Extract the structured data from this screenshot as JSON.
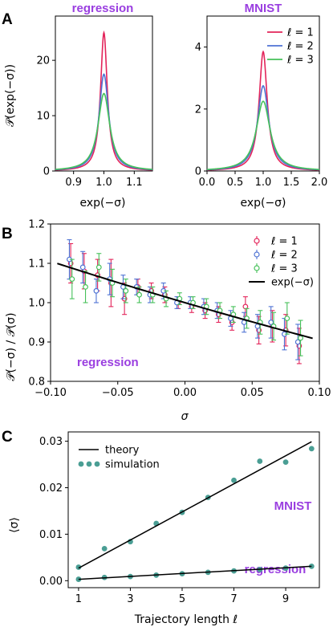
{
  "panels": {
    "A": {
      "letter": "A",
      "left": {
        "title": "regression",
        "ylabel": "𝒫(exp(−σ))",
        "xlabel": "exp(−σ)",
        "xticks": [
          "0.9",
          "1.0",
          "1.1"
        ],
        "yticks": [
          "0",
          "10",
          "20"
        ]
      },
      "right": {
        "title": "MNIST",
        "xlabel": "exp(−σ)",
        "xticks": [
          "0.0",
          "0.5",
          "1.0",
          "1.5",
          "2.0"
        ],
        "yticks": [
          "0",
          "2",
          "4"
        ],
        "legend": [
          "ℓ = 1",
          "ℓ = 2",
          "ℓ = 3"
        ]
      }
    },
    "B": {
      "letter": "B",
      "ylabel": "𝒫(−σ) / 𝒫(σ)",
      "xlabel": "σ",
      "annotation": "regression",
      "xticks": [
        "−0.10",
        "−0.05",
        "0.00",
        "0.05",
        "0.10"
      ],
      "yticks": [
        "0.8",
        "0.9",
        "1.0",
        "1.1",
        "1.2"
      ],
      "legend": [
        "ℓ = 1",
        "ℓ = 2",
        "ℓ = 3",
        "exp(−σ)"
      ]
    },
    "C": {
      "letter": "C",
      "ylabel": "⟨σ⟩",
      "xlabel": "Trajectory length ℓ",
      "annotation_top": "MNIST",
      "annotation_bottom": "regression",
      "xticks": [
        "1",
        "3",
        "5",
        "7",
        "9"
      ],
      "yticks": [
        "0.00",
        "0.01",
        "0.02",
        "0.03"
      ],
      "legend": [
        "theory",
        "simulation"
      ]
    }
  },
  "colors": {
    "l1": "#e3245a",
    "l2": "#4f73d4",
    "l3": "#46c15a",
    "theory": "#000000",
    "simulation": "#4a9e94",
    "annotation": "#9a3ee0"
  },
  "chart_data": [
    {
      "type": "line",
      "panel": "A-left",
      "title": "regression",
      "xlabel": "exp(−σ)",
      "ylabel": "𝒫(exp(−σ))",
      "xlim": [
        0.84,
        1.16
      ],
      "ylim": [
        0,
        28
      ],
      "series": [
        {
          "name": "ℓ = 1",
          "peak_x": 1.0,
          "peak_y": 25,
          "half_width": 0.0135
        },
        {
          "name": "ℓ = 2",
          "peak_x": 1.0,
          "peak_y": 17.5,
          "half_width": 0.019
        },
        {
          "name": "ℓ = 3",
          "peak_x": 1.0,
          "peak_y": 14,
          "half_width": 0.0235
        }
      ]
    },
    {
      "type": "line",
      "panel": "A-right",
      "title": "MNIST",
      "xlabel": "exp(−σ)",
      "xlim": [
        0.0,
        2.0
      ],
      "ylim": [
        0,
        5.0
      ],
      "series": [
        {
          "name": "ℓ = 1",
          "peak_x": 1.0,
          "peak_y": 3.85,
          "half_width": 0.088
        },
        {
          "name": "ℓ = 2",
          "peak_x": 1.0,
          "peak_y": 2.75,
          "half_width": 0.122
        },
        {
          "name": "ℓ = 3",
          "peak_x": 1.0,
          "peak_y": 2.25,
          "half_width": 0.15
        }
      ]
    },
    {
      "type": "scatter",
      "panel": "B",
      "xlabel": "σ",
      "ylabel": "𝒫(−σ) / 𝒫(σ)",
      "xlim": [
        -0.1,
        0.1
      ],
      "ylim": [
        0.8,
        1.2
      ],
      "series": [
        {
          "name": "ℓ = 1",
          "x": [
            -0.085,
            -0.075,
            -0.065,
            -0.055,
            -0.045,
            -0.035,
            -0.025,
            -0.015,
            -0.005,
            0.005,
            0.015,
            0.025,
            0.035,
            0.045,
            0.055,
            0.065,
            0.075,
            0.085
          ],
          "y": [
            1.1,
            1.08,
            1.07,
            1.05,
            1.01,
            1.04,
            1.03,
            1.02,
            1.0,
            0.99,
            0.98,
            0.97,
            0.95,
            0.99,
            0.93,
            0.94,
            0.93,
            0.89
          ],
          "err": [
            0.05,
            0.045,
            0.04,
            0.06,
            0.04,
            0.02,
            0.02,
            0.02,
            0.015,
            0.015,
            0.02,
            0.02,
            0.02,
            0.025,
            0.035,
            0.04,
            0.04,
            0.045
          ]
        },
        {
          "name": "ℓ = 2",
          "x": [
            -0.086,
            -0.076,
            -0.066,
            -0.056,
            -0.046,
            -0.036,
            -0.026,
            -0.016,
            -0.006,
            0.004,
            0.014,
            0.024,
            0.034,
            0.044,
            0.054,
            0.064,
            0.074,
            0.084
          ],
          "y": [
            1.11,
            1.09,
            1.03,
            1.06,
            1.04,
            1.04,
            1.02,
            1.03,
            1.0,
            1.0,
            0.99,
            0.98,
            0.96,
            0.95,
            0.94,
            0.95,
            0.92,
            0.9
          ],
          "err": [
            0.05,
            0.04,
            0.03,
            0.04,
            0.03,
            0.02,
            0.02,
            0.02,
            0.015,
            0.015,
            0.02,
            0.02,
            0.02,
            0.025,
            0.03,
            0.04,
            0.04,
            0.045
          ]
        },
        {
          "name": "ℓ = 3",
          "x": [
            -0.084,
            -0.074,
            -0.064,
            -0.054,
            -0.044,
            -0.034,
            -0.024,
            -0.014,
            -0.004,
            0.006,
            0.016,
            0.026,
            0.036,
            0.046,
            0.056,
            0.066,
            0.076,
            0.086
          ],
          "y": [
            1.06,
            1.04,
            1.09,
            1.05,
            1.03,
            1.02,
            1.02,
            1.01,
            1.01,
            1.0,
            0.99,
            0.98,
            0.97,
            0.96,
            0.95,
            0.94,
            0.96,
            0.91
          ],
          "err": [
            0.05,
            0.04,
            0.035,
            0.035,
            0.03,
            0.02,
            0.02,
            0.02,
            0.015,
            0.015,
            0.02,
            0.02,
            0.02,
            0.025,
            0.03,
            0.035,
            0.04,
            0.045
          ]
        }
      ],
      "reference": {
        "name": "exp(−σ)"
      }
    },
    {
      "type": "scatter",
      "panel": "C",
      "xlabel": "Trajectory length ℓ",
      "ylabel": "⟨σ⟩",
      "xlim": [
        0.6,
        10.3
      ],
      "ylim": [
        -0.0015,
        0.032
      ],
      "series": [
        {
          "name": "MNIST simulation",
          "x": [
            1,
            2,
            3,
            4,
            5,
            6,
            7,
            8,
            9,
            10
          ],
          "y": [
            0.0029,
            0.0069,
            0.0084,
            0.0123,
            0.0147,
            0.0179,
            0.0216,
            0.0257,
            0.0255,
            0.0284
          ]
        },
        {
          "name": "MNIST theory",
          "x": [
            1,
            10
          ],
          "y": [
            0.0027,
            0.0299
          ]
        },
        {
          "name": "regression simulation",
          "x": [
            1,
            2,
            3,
            4,
            5,
            6,
            7,
            8,
            9,
            10
          ],
          "y": [
            0.0003,
            0.0007,
            0.0009,
            0.0012,
            0.0015,
            0.0018,
            0.0021,
            0.0024,
            0.0027,
            0.0031
          ]
        },
        {
          "name": "regression theory",
          "x": [
            1,
            10
          ],
          "y": [
            0.0003,
            0.0031
          ]
        }
      ]
    }
  ]
}
